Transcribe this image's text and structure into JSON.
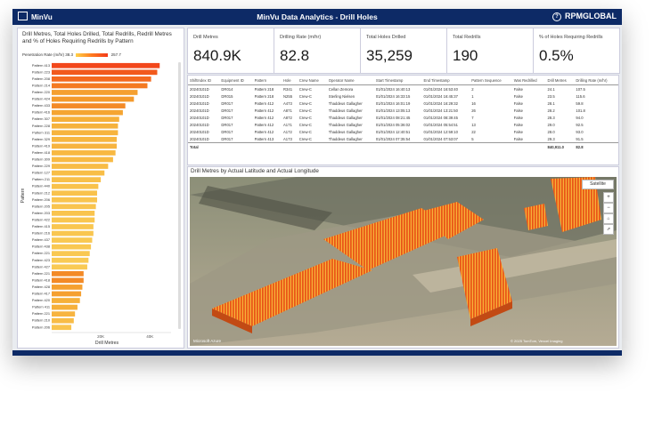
{
  "header": {
    "app_name": "MinVu",
    "title": "MinVu Data Analytics - Drill Holes",
    "brand": "RPMGLOBAL"
  },
  "left_chart": {
    "title": "Drill Metres, Total Holes Drilled, Total Redrills, Redrill Metres and % of Holes Requiring Redrills by Pattern",
    "legend_label": "Penetration Rate (m/hr)",
    "legend_min": "38.3",
    "legend_max": "257.7"
  },
  "chart_data": {
    "type": "bar",
    "orientation": "horizontal",
    "title": "Drill Metres, Total Holes Drilled, Total Redrills, Redrill Metres and % of Holes Requiring Redrills by Pattern",
    "ylabel": "Pattern",
    "xlabel": "Drill Metres",
    "xlim": [
      0,
      45000
    ],
    "x_ticks": [
      "20K",
      "40K"
    ],
    "categories": [
      "Pattern 413",
      "Pattern 223",
      "Pattern 208",
      "Pattern 214",
      "Pattern 220",
      "Pattern 424",
      "Pattern 433",
      "Pattern 416",
      "Pattern 307",
      "Pattern 228",
      "Pattern 311",
      "Pattern 329",
      "Pattern 419",
      "Pattern 418",
      "Pattern 309",
      "Pattern 229",
      "Pattern 127",
      "Pattern 211",
      "Pattern 440",
      "Pattern 212",
      "Pattern 206",
      "Pattern 205",
      "Pattern 203",
      "Pattern 422",
      "Pattern 415",
      "Pattern 216",
      "Pattern 437",
      "Pattern 438",
      "Pattern 221",
      "Pattern 423",
      "Pattern 427",
      "Pattern 221",
      "Pattern 418",
      "Pattern 428",
      "Pattern 417",
      "Pattern 420",
      "Pattern 411",
      "Pattern 221",
      "Pattern 210",
      "Pattern 206"
    ],
    "values": [
      44000,
      43000,
      40500,
      39000,
      35000,
      33500,
      30000,
      29000,
      27500,
      27000,
      27000,
      26500,
      26500,
      26000,
      25000,
      23000,
      21500,
      20000,
      19000,
      18500,
      18500,
      18000,
      17500,
      17500,
      17000,
      17000,
      16500,
      16000,
      15500,
      15000,
      14500,
      13000,
      13000,
      12500,
      12000,
      11500,
      10500,
      9500,
      9000,
      8000
    ],
    "colors_by_penetration": [
      "#f2471b",
      "#f25a1d",
      "#f46a1f",
      "#f47a22",
      "#f5a030",
      "#f49a2c",
      "#f38a27",
      "#f5a532",
      "#f6b03a",
      "#f6b23c",
      "#f7b43e",
      "#f7b640",
      "#f7b440",
      "#f8b841",
      "#f8ba44",
      "#f8bc46",
      "#f8be47",
      "#f8c04a",
      "#f9c24c",
      "#f9c24c",
      "#f9c44e",
      "#f9c44e",
      "#f9c44e",
      "#f9c650",
      "#f9c650",
      "#f9c650",
      "#f9c852",
      "#f9c852",
      "#f9c852",
      "#f9ca54",
      "#f9ca54",
      "#f38a27",
      "#f38a27",
      "#f5a030",
      "#f5a030",
      "#f6b03a",
      "#f6b03a",
      "#f7b440",
      "#f8bc46",
      "#f9c44e"
    ]
  },
  "kpis": [
    {
      "label": "Drill Metres",
      "value": "840.9K"
    },
    {
      "label": "Drilling Rate (m/hr)",
      "value": "82.8"
    },
    {
      "label": "Total Holes Drilled",
      "value": "35,259"
    },
    {
      "label": "Total Redrills",
      "value": "190"
    },
    {
      "label": "% of Holes Requiring Redrills",
      "value": "0.5%"
    }
  ],
  "table": {
    "columns": [
      "ShiftIndex ID",
      "Equipment ID",
      "Pattern",
      "Hole",
      "Crew Name",
      "Operator Name",
      "Start Timestamp",
      "End Timestamp",
      "Pattern Sequence",
      "Was Redrilled",
      "Drill Metres",
      "Drilling Rate (m/hr)"
    ],
    "rows": [
      [
        "20240101D",
        "DR014",
        "Pattern 218",
        "R341",
        "Crew-C",
        "Cellan Zemora",
        "01/01/2024 16:40:13",
        "01/01/2024 16:53:40",
        "2",
        "False",
        "24.1",
        "107.5"
      ],
      [
        "20240101D",
        "DR015",
        "Pattern 218",
        "N255",
        "Crew-C",
        "Sterling Nielsen",
        "01/01/2024 16:33:15",
        "01/01/2024 16:45:37",
        "1",
        "False",
        "23.5",
        "115.6"
      ],
      [
        "20240101D",
        "DR017",
        "Pattern 412",
        "A473",
        "Crew-C",
        "Thaddeus Gallagher",
        "01/01/2024 16:01:19",
        "01/01/2024 16:29:32",
        "16",
        "False",
        "28.1",
        "59.8"
      ],
      [
        "20240101D",
        "DR017",
        "Pattern 412",
        "A871",
        "Crew-C",
        "Thaddeus Gallagher",
        "01/01/2024 13:05:13",
        "01/01/2024 13:21:50",
        "26",
        "False",
        "28.2",
        "101.8"
      ],
      [
        "20240101D",
        "DR017",
        "Pattern 412",
        "A872",
        "Crew-C",
        "Thaddeus Gallagher",
        "01/01/2024 08:21:45",
        "01/01/2024 08:39:45",
        "7",
        "False",
        "28.3",
        "94.0"
      ],
      [
        "20240101D",
        "DR017",
        "Pattern 412",
        "A171",
        "Crew-C",
        "Thaddeus Gallagher",
        "01/01/2024 05:36:02",
        "01/01/2024 05:54:51",
        "13",
        "False",
        "29.0",
        "92.5"
      ],
      [
        "20240101D",
        "DR017",
        "Pattern 412",
        "A172",
        "Crew-C",
        "Thaddeus Gallagher",
        "01/01/2024 12:40:51",
        "01/01/2024 12:59:10",
        "22",
        "False",
        "28.0",
        "93.0"
      ],
      [
        "20240101D",
        "DR017",
        "Pattern 413",
        "A173",
        "Crew-C",
        "Thaddeus Gallagher",
        "01/01/2024 07:35:54",
        "01/01/2024 07:53:07",
        "5",
        "False",
        "29.3",
        "91.5"
      ]
    ],
    "total_label": "Total",
    "total_drill_metres": "840,911.0",
    "total_rate": "82.8"
  },
  "map": {
    "title": "Drill Metres by Actual Latitude and Actual Longitude",
    "satellite_label": "Satellite",
    "attribution_left": "Microsoft Azure",
    "attribution_right": "© 2025 TomTom, Vexcel Imaging"
  }
}
